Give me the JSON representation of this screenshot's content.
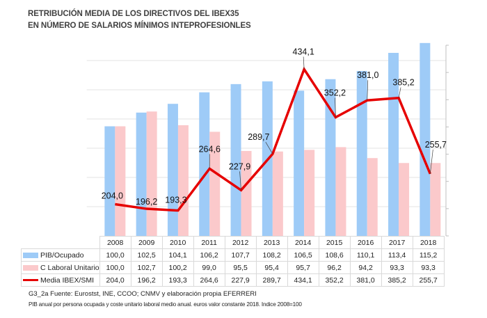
{
  "title": {
    "line1": "RETRIBUCIÓN MEDIA DE LOS DIRECTIVOS DEL IBEX35",
    "line2": "EN NÚMERO DE SALARIOS MÍNIMOS INTEPROFESIONLES"
  },
  "colors": {
    "pib": "#9ecbf7",
    "laboral": "#fbc9cb",
    "ibex": "#e60000",
    "grid": "#e3e3e3",
    "axis": "#bfbfbf"
  },
  "chart_data": {
    "type": "bar",
    "title": "RETRIBUCIÓN MEDIA DE LOS DIRECTIVOS DEL IBEX35 EN NÚMERO DE SALARIOS MÍNIMOS INTEPROFESIONLES",
    "xlabel": "",
    "ylabel": "",
    "categories": [
      "2008",
      "2009",
      "2010",
      "2011",
      "2012",
      "2013",
      "2014",
      "2015",
      "2016",
      "2017",
      "2018"
    ],
    "series": [
      {
        "name": "PIB/Ocupado",
        "type": "bar",
        "axis": "primary",
        "values": [
          100.0,
          102.5,
          104.1,
          106.2,
          107.7,
          108.2,
          106.5,
          108.6,
          110.1,
          113.4,
          115.2
        ],
        "labels": [
          "100,0",
          "102,5",
          "104,1",
          "106,2",
          "107,7",
          "108,2",
          "106,5",
          "108,6",
          "110,1",
          "113,4",
          "115,2"
        ]
      },
      {
        "name": "C Laboral Unitario",
        "type": "bar",
        "axis": "primary",
        "values": [
          100.0,
          102.7,
          100.2,
          99.0,
          95.5,
          95.4,
          95.7,
          96.2,
          94.2,
          93.3,
          93.3
        ],
        "labels": [
          "100,0",
          "102,7",
          "100,2",
          "99,0",
          "95,5",
          "95,4",
          "95,7",
          "96,2",
          "94,2",
          "93,3",
          "93,3"
        ]
      },
      {
        "name": "Media IBEX/SMI",
        "type": "line",
        "axis": "secondary",
        "values": [
          204.0,
          196.2,
          193.3,
          264.6,
          227.9,
          289.7,
          434.1,
          352.2,
          381.0,
          385.2,
          255.7
        ],
        "labels": [
          "204,0",
          "196,2",
          "193,3",
          "264,6",
          "227,9",
          "289,7",
          "434,1",
          "352,2",
          "381,0",
          "385,2",
          "255,7"
        ]
      }
    ],
    "primary_ylim": [
      80,
      117
    ],
    "secondary_ylim": [
      150,
      475
    ],
    "grid": true,
    "legend": "data-table-below",
    "data_table": true
  },
  "footnote": {
    "line1": "G3_2a  Fuente:  Eurostst,  INE,  CCOO;  CNMV  y elaboración  propia  EFERRERI",
    "line2": "PIB anual por persona ocupada y coste unitario laboral medio anual. euros valor constante 2018. Indice 2008=100"
  }
}
